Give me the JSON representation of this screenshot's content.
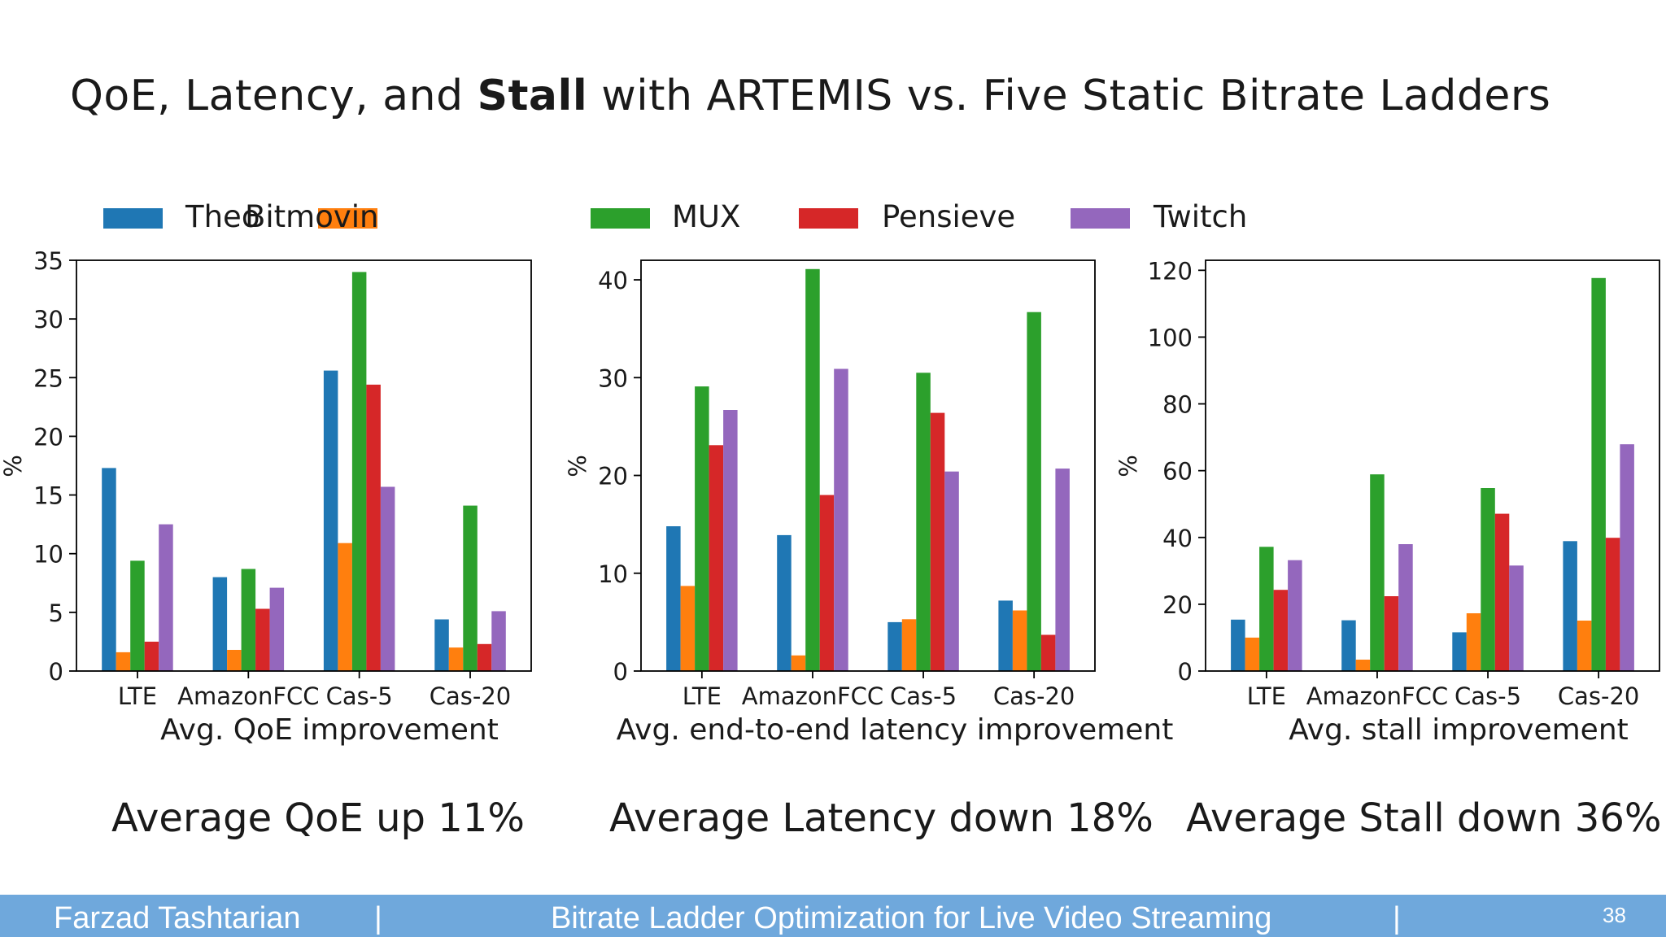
{
  "title": {
    "part1": "QoE, Latency, and ",
    "bold": "Stall",
    "part2": " with ARTEMIS vs. Five Static Bitrate Ladders"
  },
  "legend": [
    {
      "name": "Theo",
      "color": "#1f77b4"
    },
    {
      "name": "Bitmovin",
      "color": "#ff7f0e"
    },
    {
      "name": "MUX",
      "color": "#2ca02c"
    },
    {
      "name": "Pensieve",
      "color": "#d62728"
    },
    {
      "name": "Twitch",
      "color": "#9467bd"
    }
  ],
  "chart_data": [
    {
      "type": "bar",
      "title": "",
      "xlabel": "Avg. QoE improvement",
      "ylabel": "%",
      "ylim": [
        0,
        35
      ],
      "yticks": [
        0,
        5,
        10,
        15,
        20,
        25,
        30,
        35
      ],
      "categories": [
        "LTE",
        "AmazonFCC",
        "Cas-5",
        "Cas-20"
      ],
      "series": [
        {
          "name": "Theo",
          "values": [
            17.3,
            8.0,
            25.6,
            4.4
          ]
        },
        {
          "name": "Bitmovin",
          "values": [
            1.6,
            1.8,
            10.9,
            2.0
          ]
        },
        {
          "name": "MUX",
          "values": [
            9.4,
            8.7,
            34.0,
            14.1
          ]
        },
        {
          "name": "Pensieve",
          "values": [
            2.5,
            5.3,
            24.4,
            2.3
          ]
        },
        {
          "name": "Twitch",
          "values": [
            12.5,
            7.1,
            15.7,
            5.1
          ]
        }
      ],
      "grid": false,
      "legend": "top"
    },
    {
      "type": "bar",
      "title": "",
      "xlabel": "Avg. end-to-end latency improvement",
      "ylabel": "%",
      "ylim": [
        0,
        42
      ],
      "yticks": [
        0,
        10,
        20,
        30,
        40
      ],
      "categories": [
        "LTE",
        "AmazonFCC",
        "Cas-5",
        "Cas-20"
      ],
      "series": [
        {
          "name": "Theo",
          "values": [
            14.8,
            13.9,
            5.0,
            7.2
          ]
        },
        {
          "name": "Bitmovin",
          "values": [
            8.7,
            1.6,
            5.3,
            6.2
          ]
        },
        {
          "name": "MUX",
          "values": [
            29.1,
            41.1,
            30.5,
            36.7
          ]
        },
        {
          "name": "Pensieve",
          "values": [
            23.1,
            18.0,
            26.4,
            3.7
          ]
        },
        {
          "name": "Twitch",
          "values": [
            26.7,
            30.9,
            20.4,
            20.7
          ]
        }
      ],
      "grid": false,
      "legend": "top"
    },
    {
      "type": "bar",
      "title": "",
      "xlabel": "Avg. stall improvement",
      "ylabel": "%",
      "ylim": [
        0,
        123
      ],
      "yticks": [
        0,
        20,
        40,
        60,
        80,
        100,
        120
      ],
      "categories": [
        "LTE",
        "AmazonFCC",
        "Cas-5",
        "Cas-20"
      ],
      "series": [
        {
          "name": "Theo",
          "values": [
            15.4,
            15.2,
            11.6,
            38.9
          ]
        },
        {
          "name": "Bitmovin",
          "values": [
            10.0,
            3.4,
            17.3,
            15.1
          ]
        },
        {
          "name": "MUX",
          "values": [
            37.2,
            58.9,
            54.8,
            117.7
          ]
        },
        {
          "name": "Pensieve",
          "values": [
            24.3,
            22.4,
            47.1,
            39.9
          ]
        },
        {
          "name": "Twitch",
          "values": [
            33.2,
            38.0,
            31.6,
            67.9
          ]
        }
      ],
      "grid": false,
      "legend": "top"
    }
  ],
  "summaries": [
    "Average QoE up 11%",
    "Average Latency down 18%",
    "Average Stall down 36%"
  ],
  "footer": {
    "author": "Farzad Tashtarian",
    "sep": "|",
    "talk": "Bitrate Ladder Optimization for Live Video Streaming",
    "page": "38"
  }
}
